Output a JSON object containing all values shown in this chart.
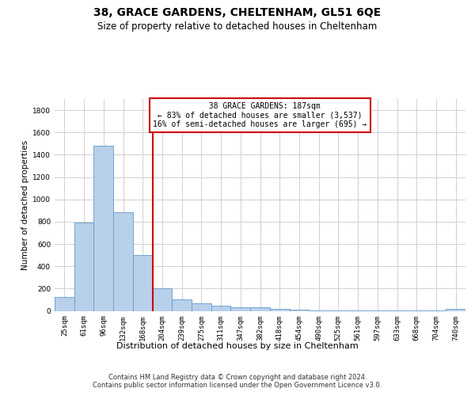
{
  "title_line1": "38, GRACE GARDENS, CHELTENHAM, GL51 6QE",
  "title_line2": "Size of property relative to detached houses in Cheltenham",
  "xlabel": "Distribution of detached houses by size in Cheltenham",
  "ylabel": "Number of detached properties",
  "footer_line1": "Contains HM Land Registry data © Crown copyright and database right 2024.",
  "footer_line2": "Contains public sector information licensed under the Open Government Licence v3.0.",
  "annotation_line1": "  38 GRACE GARDENS: 187sqm",
  "annotation_line2": "← 83% of detached houses are smaller (3,537)",
  "annotation_line3": "16% of semi-detached houses are larger (695) →",
  "categories": [
    "25sqm",
    "61sqm",
    "96sqm",
    "132sqm",
    "168sqm",
    "204sqm",
    "239sqm",
    "275sqm",
    "311sqm",
    "347sqm",
    "382sqm",
    "418sqm",
    "454sqm",
    "490sqm",
    "525sqm",
    "561sqm",
    "597sqm",
    "633sqm",
    "668sqm",
    "704sqm",
    "740sqm"
  ],
  "values": [
    125,
    795,
    1480,
    885,
    500,
    205,
    105,
    65,
    45,
    35,
    30,
    20,
    10,
    5,
    3,
    2,
    2,
    1,
    1,
    1,
    15
  ],
  "bar_color": "#b8d0ea",
  "bar_edgecolor": "#6699cc",
  "vline_position": 4.5,
  "vline_color": "#cc0000",
  "ylim": [
    0,
    1900
  ],
  "yticks": [
    0,
    200,
    400,
    600,
    800,
    1000,
    1200,
    1400,
    1600,
    1800
  ],
  "background_color": "#ffffff",
  "grid_color": "#d0d0d0",
  "annotation_box_edgecolor": "#cc0000",
  "annotation_box_facecolor": "#ffffff",
  "title1_fontsize": 10,
  "title2_fontsize": 8.5,
  "footer_fontsize": 6,
  "ylabel_fontsize": 7.5,
  "xlabel_fontsize": 8,
  "tick_fontsize": 6.5,
  "ann_fontsize": 7
}
